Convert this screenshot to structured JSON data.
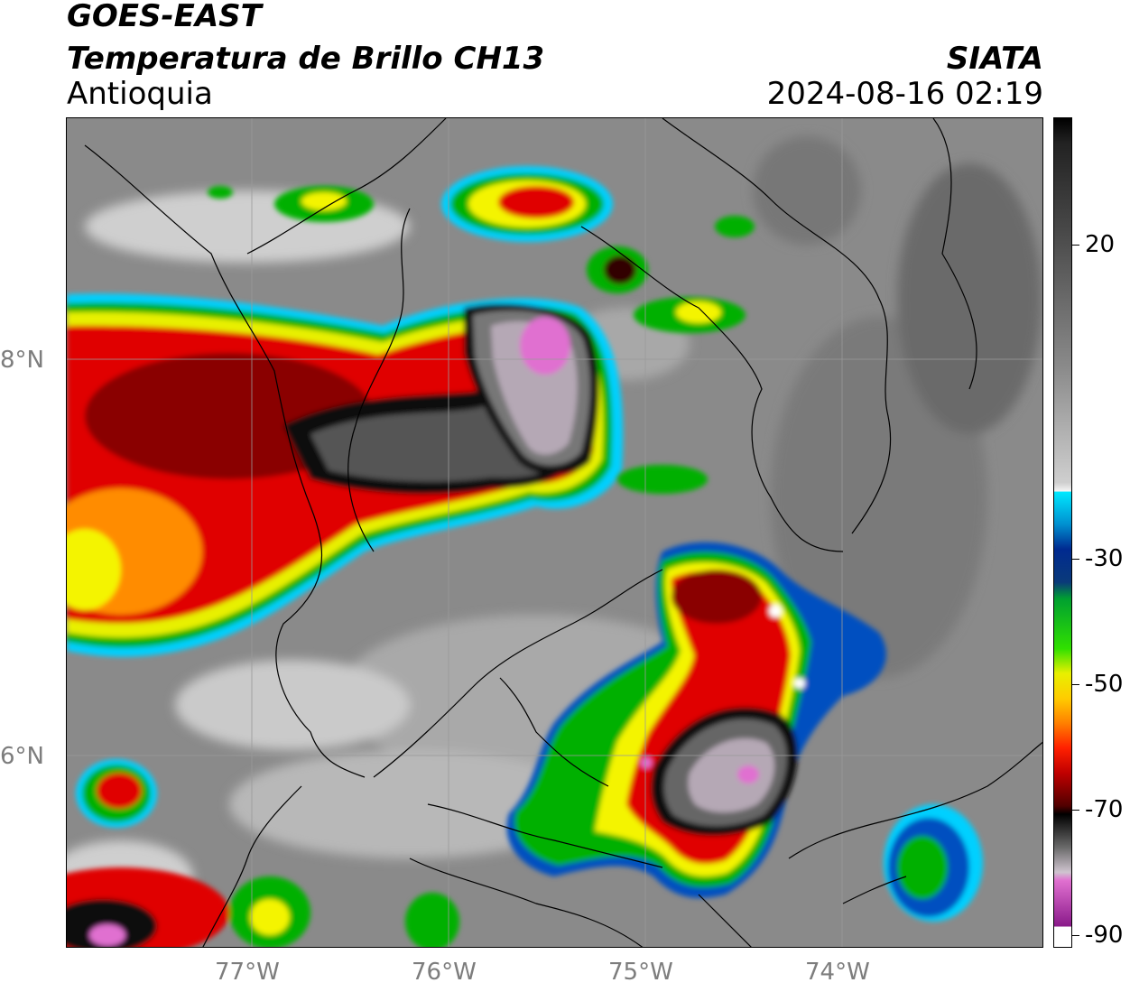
{
  "header": {
    "satellite": "GOES-EAST",
    "product": "Temperatura de Brillo CH13",
    "region": "Antioquia",
    "organization": "SIATA",
    "datetime": "2024-08-16 02:19"
  },
  "axes": {
    "lat_labels": [
      "8°N",
      "6°N"
    ],
    "lon_labels": [
      "77°W",
      "76°W",
      "75°W",
      "74°W"
    ]
  },
  "colorbar": {
    "tick_labels": [
      "20",
      "-30",
      "-50",
      "-70",
      "-90"
    ],
    "colors": {
      "gray_warm": "#6e6e6e",
      "white": "#f2f2f2",
      "cyan": "#00e0ff",
      "blue": "#0033a0",
      "green": "#00b000",
      "yellow": "#f4f400",
      "orange": "#ff8c00",
      "red": "#e00000",
      "darkred": "#5a0000",
      "black": "#000000",
      "pink": "#e070d0",
      "purple": "#8a1a8a"
    }
  }
}
